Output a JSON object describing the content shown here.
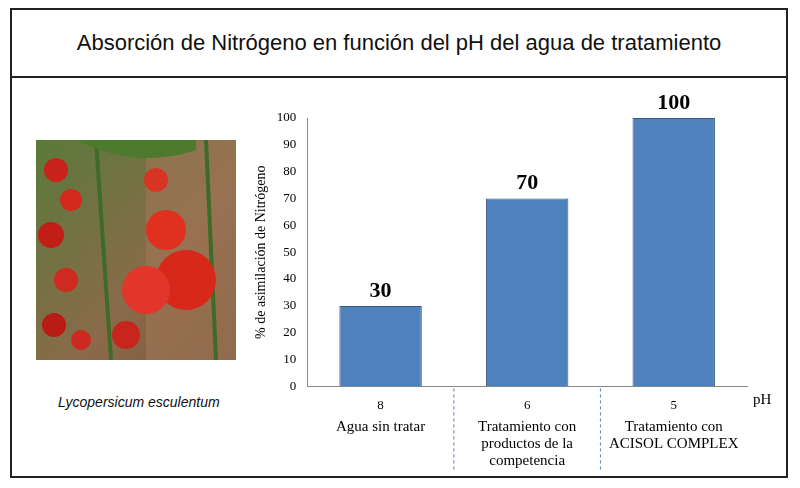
{
  "chart_data": {
    "type": "bar",
    "title": "Absorción de Nitrógeno en función del pH del agua de tratamiento",
    "y_label": "% de asimilación de Nitrógeno",
    "x_label": "pH",
    "categories": [
      "8",
      "6",
      "5"
    ],
    "group_labels": [
      "Agua sin tratar",
      "Tratamiento con productos de la competencia",
      "Tratamiento con ACISOL COMPLEX"
    ],
    "values": [
      30,
      70,
      100
    ],
    "color": "#4f81bd",
    "ylim": [
      0,
      100
    ],
    "yticks": [
      0,
      10,
      20,
      30,
      40,
      50,
      60,
      70,
      80,
      90,
      100
    ],
    "grid": false,
    "data_labels": true
  },
  "image_caption": "Lycopersicum esculentum"
}
